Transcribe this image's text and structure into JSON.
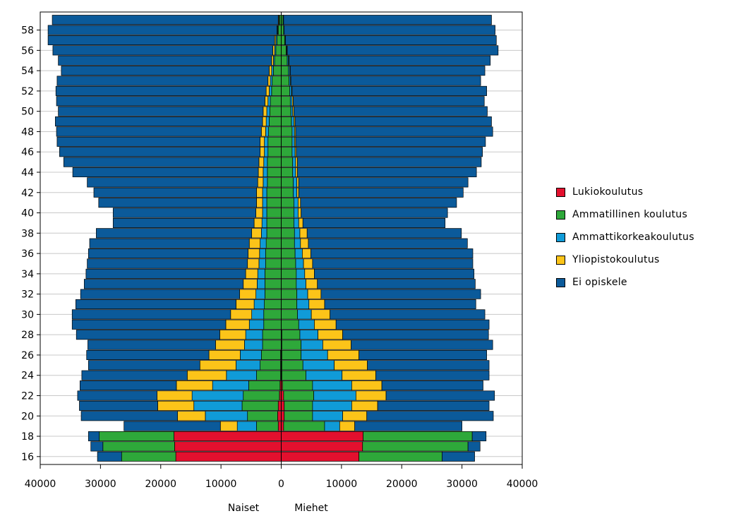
{
  "chart_data": {
    "type": "bar",
    "subtype": "population-pyramid-stacked",
    "title": "",
    "xlabel_left": "Naiset",
    "xlabel_right": "Miehet",
    "xlim": [
      -40000,
      40000
    ],
    "x_ticks": [
      -40000,
      -30000,
      -20000,
      -10000,
      0,
      10000,
      20000,
      30000,
      40000
    ],
    "x_tick_labels": [
      "40000",
      "30000",
      "20000",
      "10000",
      "0",
      "10000",
      "20000",
      "30000",
      "40000"
    ],
    "y_ticks": [
      16,
      18,
      20,
      22,
      24,
      26,
      28,
      30,
      32,
      34,
      36,
      38,
      40,
      42,
      44,
      46,
      48,
      50,
      52,
      54,
      56,
      58
    ],
    "ages": [
      16,
      17,
      18,
      19,
      20,
      21,
      22,
      23,
      24,
      25,
      26,
      27,
      28,
      29,
      30,
      31,
      32,
      33,
      34,
      35,
      36,
      37,
      38,
      39,
      40,
      41,
      42,
      43,
      44,
      45,
      46,
      47,
      48,
      49,
      50,
      51,
      52,
      53,
      54,
      55,
      56,
      57,
      58,
      59
    ],
    "grid": "horizontal",
    "legend_position": "right",
    "series_colors": {
      "Lukiokoulutus": "#e3102e",
      "Ammatillinen koulutus": "#2ea83a",
      "Ammattikorkeakoulutus": "#109bd8",
      "Yliopistokoulutus": "#fcc419",
      "Ei opiskele": "#0b5a9a"
    },
    "naiset": {
      "Lukiokoulutus": [
        17500,
        17700,
        17800,
        500,
        600,
        500,
        300,
        200,
        100,
        100,
        100,
        0,
        0,
        0,
        0,
        0,
        0,
        0,
        0,
        0,
        0,
        0,
        0,
        0,
        0,
        0,
        0,
        0,
        0,
        0,
        0,
        0,
        0,
        0,
        0,
        0,
        0,
        0,
        0,
        0,
        0,
        0,
        0,
        0
      ],
      "Ammatillinen koulutus": [
        9000,
        11900,
        12400,
        3600,
        5000,
        6000,
        6000,
        5200,
        4000,
        3400,
        3200,
        3100,
        3100,
        2900,
        2900,
        2800,
        2700,
        2700,
        2700,
        2600,
        2600,
        2500,
        2400,
        2400,
        2400,
        2400,
        2400,
        2300,
        2300,
        2300,
        2200,
        2200,
        2100,
        2000,
        1900,
        1800,
        1600,
        1500,
        1300,
        1100,
        900,
        700,
        500,
        300
      ],
      "Ammattikorkeakoulutus": [
        0,
        0,
        0,
        3200,
        7000,
        8000,
        8500,
        6000,
        5000,
        4000,
        3500,
        3000,
        2800,
        2400,
        2000,
        1700,
        1500,
        1300,
        1200,
        1100,
        1000,
        1000,
        900,
        800,
        700,
        700,
        700,
        700,
        700,
        600,
        600,
        600,
        500,
        500,
        500,
        400,
        400,
        300,
        300,
        200,
        200,
        200,
        100,
        100
      ],
      "Yliopistokoulutus": [
        0,
        0,
        0,
        2800,
        4600,
        6000,
        5800,
        6000,
        6500,
        6000,
        5200,
        4800,
        4300,
        3900,
        3500,
        3000,
        2700,
        2300,
        2000,
        1900,
        1900,
        1800,
        1600,
        1300,
        1100,
        1000,
        1000,
        900,
        800,
        800,
        700,
        700,
        700,
        600,
        600,
        500,
        500,
        400,
        400,
        300,
        300,
        200,
        100,
        100
      ],
      "Ei opiskele": [
        4000,
        2000,
        1800,
        16000,
        16000,
        13000,
        13200,
        16000,
        17500,
        18500,
        20300,
        21200,
        23800,
        25500,
        26300,
        26600,
        26400,
        26400,
        26500,
        26600,
        26500,
        26500,
        25800,
        23400,
        23700,
        26200,
        27000,
        28300,
        30800,
        32400,
        33300,
        33700,
        34000,
        34400,
        34000,
        34600,
        34900,
        35000,
        34500,
        35400,
        36500,
        37600,
        38000,
        37500
      ]
    },
    "miehet": {
      "Lukiokoulutus": [
        12900,
        13500,
        13600,
        400,
        500,
        500,
        400,
        200,
        100,
        100,
        100,
        100,
        100,
        0,
        0,
        0,
        0,
        0,
        0,
        0,
        0,
        0,
        0,
        0,
        0,
        0,
        0,
        0,
        0,
        0,
        0,
        0,
        0,
        0,
        0,
        0,
        0,
        0,
        0,
        0,
        0,
        0,
        0,
        0
      ],
      "Ammatillinen koulutus": [
        13800,
        17500,
        18100,
        6800,
        4700,
        4700,
        5000,
        5000,
        4000,
        3500,
        3200,
        3200,
        3000,
        2900,
        2700,
        2600,
        2600,
        2500,
        2500,
        2400,
        2300,
        2200,
        2200,
        2100,
        2100,
        2100,
        2000,
        2000,
        1900,
        1900,
        1800,
        1800,
        1800,
        1700,
        1600,
        1500,
        1400,
        1300,
        1200,
        1000,
        800,
        600,
        400,
        300
      ],
      "Ammattikorkeakoulutus": [
        0,
        0,
        0,
        2500,
        5000,
        6500,
        7000,
        6500,
        6000,
        5200,
        4400,
        3600,
        3000,
        2600,
        2300,
        2000,
        1800,
        1600,
        1400,
        1300,
        1200,
        1000,
        900,
        800,
        700,
        700,
        600,
        600,
        500,
        500,
        500,
        400,
        400,
        400,
        300,
        300,
        300,
        200,
        200,
        200,
        100,
        100,
        100,
        100
      ],
      "Yliopistokoulutus": [
        0,
        0,
        0,
        2500,
        4000,
        4300,
        5000,
        5000,
        5600,
        5500,
        5200,
        4700,
        4100,
        3600,
        3100,
        2600,
        2200,
        1900,
        1600,
        1500,
        1400,
        1300,
        1200,
        700,
        500,
        400,
        300,
        300,
        300,
        300,
        200,
        200,
        200,
        200,
        200,
        200,
        100,
        100,
        100,
        100,
        100,
        0,
        0,
        0
      ],
      "Ei opiskele": [
        5400,
        2000,
        2300,
        17800,
        21000,
        18500,
        18000,
        16800,
        18800,
        20200,
        21200,
        23500,
        24200,
        25400,
        25700,
        25100,
        26500,
        26200,
        26500,
        26600,
        26900,
        26400,
        25600,
        23600,
        24300,
        25900,
        27300,
        28100,
        29700,
        30500,
        30900,
        31500,
        32700,
        32600,
        32100,
        31700,
        32300,
        31500,
        32300,
        33400,
        35000,
        35000,
        35000,
        34500
      ]
    }
  }
}
